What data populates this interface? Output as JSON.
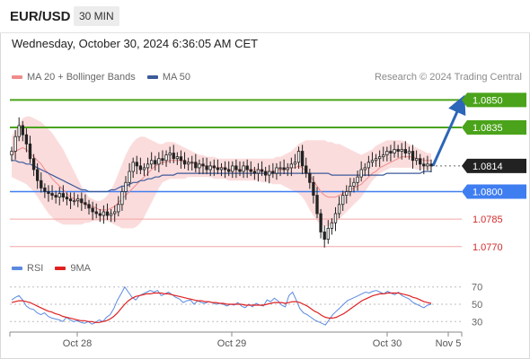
{
  "header": {
    "symbol": "EUR/USD",
    "timeframe": "30 MIN"
  },
  "timestamp": "Wednesday, October 30, 2024 6:36:05 AM CET",
  "legend": {
    "ma20": "MA 20 + Bollinger Bands",
    "ma50": "MA 50",
    "watermark": "Research © 2024 Trading Central"
  },
  "colors": {
    "target_line": "#4aa31a",
    "pivot_line": "#3f7ef0",
    "support_line": "#f3a5a5",
    "support_text": "#d32b2b",
    "ma20": "#f08b8b",
    "ma50": "#3c5a9a",
    "bollinger_fill": "#fbd8d8",
    "candle": "#222222",
    "arrow": "#2c66b8",
    "rsi": "#5b8ae0",
    "rsi_ma": "#e02020"
  },
  "chart_data": [
    {
      "type": "candlestick",
      "series_names": [
        "MA 20 + Bollinger Bands",
        "MA 50"
      ],
      "ylim": [
        1.0765,
        1.0858
      ],
      "x_tick_labels": [
        "Oct 28",
        "Oct 29",
        "Oct 30",
        "Nov 5"
      ],
      "levels": [
        {
          "label": "1.0850",
          "value": 1.085,
          "kind": "target"
        },
        {
          "label": "1.0835",
          "value": 1.0835,
          "kind": "target"
        },
        {
          "label": "1.0814",
          "value": 1.0814,
          "kind": "last"
        },
        {
          "label": "1.0800",
          "value": 1.08,
          "kind": "pivot"
        },
        {
          "label": "1.0785",
          "value": 1.0785,
          "kind": "support"
        },
        {
          "label": "1.0770",
          "value": 1.077,
          "kind": "support"
        }
      ],
      "projection": {
        "from": 1.0814,
        "to": 1.085
      },
      "close": [
        1.0822,
        1.083,
        1.0836,
        1.0831,
        1.0826,
        1.0818,
        1.0812,
        1.0806,
        1.0802,
        1.08,
        1.0799,
        1.0798,
        1.0797,
        1.0799,
        1.0797,
        1.0796,
        1.0795,
        1.0795,
        1.0796,
        1.0794,
        1.0793,
        1.0791,
        1.0789,
        1.0788,
        1.0787,
        1.0789,
        1.0787,
        1.0788,
        1.0789,
        1.0793,
        1.08,
        1.0805,
        1.0811,
        1.0816,
        1.0814,
        1.0812,
        1.0813,
        1.0815,
        1.0817,
        1.0815,
        1.0818,
        1.0817,
        1.082,
        1.0821,
        1.0818,
        1.0819,
        1.0817,
        1.0815,
        1.0816,
        1.0816,
        1.0813,
        1.0815,
        1.0814,
        1.0812,
        1.0814,
        1.0813,
        1.0812,
        1.0813,
        1.0812,
        1.0811,
        1.0814,
        1.0812,
        1.0811,
        1.0814,
        1.0812,
        1.0811,
        1.081,
        1.0812,
        1.0811,
        1.0809,
        1.0811,
        1.081,
        1.0813,
        1.0813,
        1.0812,
        1.0813,
        1.0815,
        1.0816,
        1.0822,
        1.0814,
        1.081,
        1.0805,
        1.0798,
        1.0788,
        1.0778,
        1.0774,
        1.078,
        1.0783,
        1.0788,
        1.0793,
        1.0798,
        1.08,
        1.0803,
        1.0805,
        1.0808,
        1.0812,
        1.0813,
        1.0816,
        1.0817,
        1.0818,
        1.0819,
        1.082,
        1.0822,
        1.0821,
        1.0823,
        1.0822,
        1.0823,
        1.0821,
        1.0822,
        1.0817,
        1.0818,
        1.0815,
        1.0814,
        1.0815,
        1.0814
      ],
      "ma20": [
        1.082,
        1.0822,
        1.0823,
        1.0824,
        1.0823,
        1.0821,
        1.0819,
        1.0817,
        1.0815,
        1.0812,
        1.081,
        1.0807,
        1.0805,
        1.0803,
        1.0801,
        1.0799,
        1.0797,
        1.0796,
        1.0795,
        1.0794,
        1.0793,
        1.0792,
        1.0792,
        1.0791,
        1.079,
        1.079,
        1.079,
        1.0791,
        1.0792,
        1.0794,
        1.0796,
        1.0798,
        1.08,
        1.0802,
        1.0804,
        1.0806,
        1.0808,
        1.081,
        1.0812,
        1.0814,
        1.0815,
        1.0816,
        1.0816,
        1.0817,
        1.0817,
        1.0817,
        1.0817,
        1.0816,
        1.0816,
        1.0816,
        1.0815,
        1.0815,
        1.0814,
        1.0814,
        1.0814,
        1.0813,
        1.0813,
        1.0813,
        1.0813,
        1.0812,
        1.0812,
        1.0812,
        1.0812,
        1.0812,
        1.0812,
        1.0812,
        1.0812,
        1.0812,
        1.0811,
        1.0811,
        1.0811,
        1.0811,
        1.0812,
        1.0812,
        1.0812,
        1.0813,
        1.0813,
        1.0813,
        1.0814,
        1.0813,
        1.0811,
        1.0809,
        1.0806,
        1.0803,
        1.08,
        1.0798,
        1.0797,
        1.0797,
        1.0797,
        1.0798,
        1.0799,
        1.08,
        1.0801,
        1.0802,
        1.0803,
        1.0804,
        1.0806,
        1.0808,
        1.081,
        1.0811,
        1.0813,
        1.0814,
        1.0815,
        1.0816,
        1.0817,
        1.0818,
        1.0819,
        1.0819,
        1.0819,
        1.0819,
        1.0818,
        1.0818,
        1.0817,
        1.0817,
        1.0817
      ],
      "ma50": [
        1.0817,
        1.0817,
        1.0816,
        1.0816,
        1.0815,
        1.0815,
        1.0814,
        1.0813,
        1.0812,
        1.0811,
        1.081,
        1.0809,
        1.0808,
        1.0807,
        1.0806,
        1.0805,
        1.0804,
        1.0803,
        1.0802,
        1.0801,
        1.0801,
        1.08,
        1.08,
        1.08,
        1.08,
        1.08,
        1.08,
        1.0801,
        1.0801,
        1.0802,
        1.0803,
        1.0803,
        1.0804,
        1.0805,
        1.0805,
        1.0806,
        1.0806,
        1.0807,
        1.0807,
        1.0808,
        1.0808,
        1.0809,
        1.0809,
        1.0809,
        1.0809,
        1.081,
        1.081,
        1.081,
        1.081,
        1.081,
        1.081,
        1.081,
        1.081,
        1.081,
        1.081,
        1.081,
        1.081,
        1.081,
        1.081,
        1.081,
        1.081,
        1.081,
        1.081,
        1.081,
        1.081,
        1.081,
        1.081,
        1.081,
        1.081,
        1.081,
        1.081,
        1.081,
        1.081,
        1.081,
        1.081,
        1.081,
        1.081,
        1.081,
        1.081,
        1.081,
        1.081,
        1.081,
        1.081,
        1.081,
        1.081,
        1.081,
        1.081,
        1.0809,
        1.0809,
        1.0809,
        1.0809,
        1.0809,
        1.0809,
        1.0809,
        1.0809,
        1.0809,
        1.0809,
        1.0809,
        1.0809,
        1.0809,
        1.0809,
        1.0809,
        1.081,
        1.081,
        1.081,
        1.081,
        1.081,
        1.081,
        1.081,
        1.081,
        1.081,
        1.081,
        1.0811,
        1.0811,
        1.0811
      ],
      "bb_upper": [
        1.083,
        1.0834,
        1.0837,
        1.084,
        1.0841,
        1.0841,
        1.084,
        1.0839,
        1.0838,
        1.0836,
        1.0834,
        1.0832,
        1.0829,
        1.0826,
        1.0823,
        1.0819,
        1.0815,
        1.0811,
        1.0807,
        1.0803,
        1.08,
        1.0797,
        1.0796,
        1.0795,
        1.0795,
        1.0796,
        1.0798,
        1.0801,
        1.0805,
        1.081,
        1.0815,
        1.082,
        1.0824,
        1.0827,
        1.0829,
        1.083,
        1.083,
        1.0829,
        1.0828,
        1.0827,
        1.0826,
        1.0826,
        1.0827,
        1.0827,
        1.0827,
        1.0826,
        1.0825,
        1.0824,
        1.0823,
        1.0822,
        1.0821,
        1.082,
        1.082,
        1.0819,
        1.0819,
        1.0819,
        1.0818,
        1.0818,
        1.0818,
        1.0818,
        1.0818,
        1.0818,
        1.0818,
        1.0818,
        1.0818,
        1.0818,
        1.0818,
        1.0818,
        1.0818,
        1.0818,
        1.0818,
        1.0818,
        1.0819,
        1.0819,
        1.082,
        1.0821,
        1.0822,
        1.0824,
        1.0826,
        1.0827,
        1.0828,
        1.0828,
        1.0828,
        1.0828,
        1.0828,
        1.0828,
        1.0827,
        1.0827,
        1.0826,
        1.0826,
        1.0825,
        1.0824,
        1.0823,
        1.0822,
        1.0821,
        1.082,
        1.0821,
        1.0822,
        1.0823,
        1.0825,
        1.0826,
        1.0827,
        1.0828,
        1.0828,
        1.0828,
        1.0828,
        1.0828,
        1.0827,
        1.0826,
        1.0825,
        1.0824,
        1.0823,
        1.0822,
        1.0821,
        1.0821
      ],
      "bb_lower": [
        1.0808,
        1.0807,
        1.0806,
        1.0805,
        1.0804,
        1.0802,
        1.08,
        1.0797,
        1.0794,
        1.0791,
        1.0788,
        1.0786,
        1.0784,
        1.0783,
        1.0782,
        1.0782,
        1.0782,
        1.0782,
        1.0782,
        1.0782,
        1.0783,
        1.0783,
        1.0784,
        1.0784,
        1.0784,
        1.0784,
        1.0784,
        1.0783,
        1.0782,
        1.0781,
        1.078,
        1.078,
        1.078,
        1.078,
        1.0781,
        1.0783,
        1.0786,
        1.079,
        1.0794,
        1.0798,
        1.0802,
        1.0805,
        1.0806,
        1.0807,
        1.0807,
        1.0807,
        1.0807,
        1.0807,
        1.0808,
        1.0808,
        1.0808,
        1.0808,
        1.0808,
        1.0808,
        1.0808,
        1.0807,
        1.0807,
        1.0807,
        1.0807,
        1.0806,
        1.0806,
        1.0806,
        1.0806,
        1.0806,
        1.0806,
        1.0806,
        1.0806,
        1.0806,
        1.0805,
        1.0805,
        1.0805,
        1.0804,
        1.0804,
        1.0804,
        1.0803,
        1.0802,
        1.0801,
        1.08,
        1.0799,
        1.0797,
        1.0794,
        1.079,
        1.0787,
        1.0784,
        1.0782,
        1.0781,
        1.0781,
        1.0782,
        1.0783,
        1.0785,
        1.0787,
        1.0789,
        1.0791,
        1.0793,
        1.0795,
        1.0797,
        1.08,
        1.0803,
        1.0806,
        1.0808,
        1.081,
        1.0811,
        1.0812,
        1.0813,
        1.0813,
        1.0813,
        1.0813,
        1.0813,
        1.0813,
        1.0813,
        1.0812,
        1.0812,
        1.0812,
        1.0812,
        1.0812
      ]
    },
    {
      "type": "line",
      "series_names": [
        "RSI",
        "9MA"
      ],
      "ylim": [
        22,
        78
      ],
      "y_ticks": [
        70,
        50,
        30
      ],
      "rsi": [
        55,
        58,
        60,
        55,
        48,
        45,
        44,
        40,
        38,
        40,
        36,
        34,
        33,
        32,
        30,
        35,
        32,
        30,
        31,
        29,
        28,
        30,
        27,
        29,
        32,
        30,
        35,
        38,
        45,
        55,
        62,
        70,
        64,
        58,
        55,
        60,
        62,
        64,
        66,
        64,
        66,
        60,
        62,
        64,
        61,
        58,
        56,
        52,
        54,
        55,
        50,
        54,
        52,
        51,
        53,
        52,
        50,
        51,
        50,
        48,
        50,
        49,
        52,
        48,
        46,
        50,
        47,
        51,
        49,
        48,
        55,
        53,
        57,
        54,
        49,
        47,
        60,
        64,
        55,
        45,
        40,
        38,
        35,
        32,
        30,
        28,
        26,
        32,
        38,
        42,
        46,
        50,
        54,
        56,
        58,
        60,
        62,
        64,
        63,
        65,
        66,
        64,
        62,
        65,
        63,
        61,
        64,
        60,
        58,
        56,
        52,
        50,
        48,
        46,
        49,
        50
      ],
      "rsi_ma": [
        52,
        53,
        54,
        54,
        53,
        52,
        50,
        48,
        46,
        44,
        42,
        41,
        39,
        38,
        36,
        35,
        34,
        33,
        32,
        31,
        31,
        30,
        30,
        29,
        29,
        30,
        31,
        33,
        36,
        40,
        45,
        50,
        54,
        57,
        59,
        60,
        61,
        62,
        62,
        63,
        63,
        63,
        62,
        62,
        61,
        60,
        59,
        58,
        57,
        56,
        55,
        54,
        54,
        53,
        53,
        52,
        52,
        51,
        51,
        50,
        50,
        50,
        50,
        50,
        49,
        49,
        49,
        49,
        49,
        49,
        50,
        51,
        52,
        52,
        52,
        51,
        52,
        53,
        53,
        52,
        50,
        48,
        45,
        42,
        40,
        37,
        35,
        34,
        34,
        35,
        37,
        39,
        42,
        45,
        48,
        51,
        54,
        56,
        58,
        60,
        61,
        62,
        62,
        63,
        63,
        63,
        63,
        62,
        61,
        60,
        58,
        57,
        55,
        53,
        52,
        51
      ]
    }
  ]
}
